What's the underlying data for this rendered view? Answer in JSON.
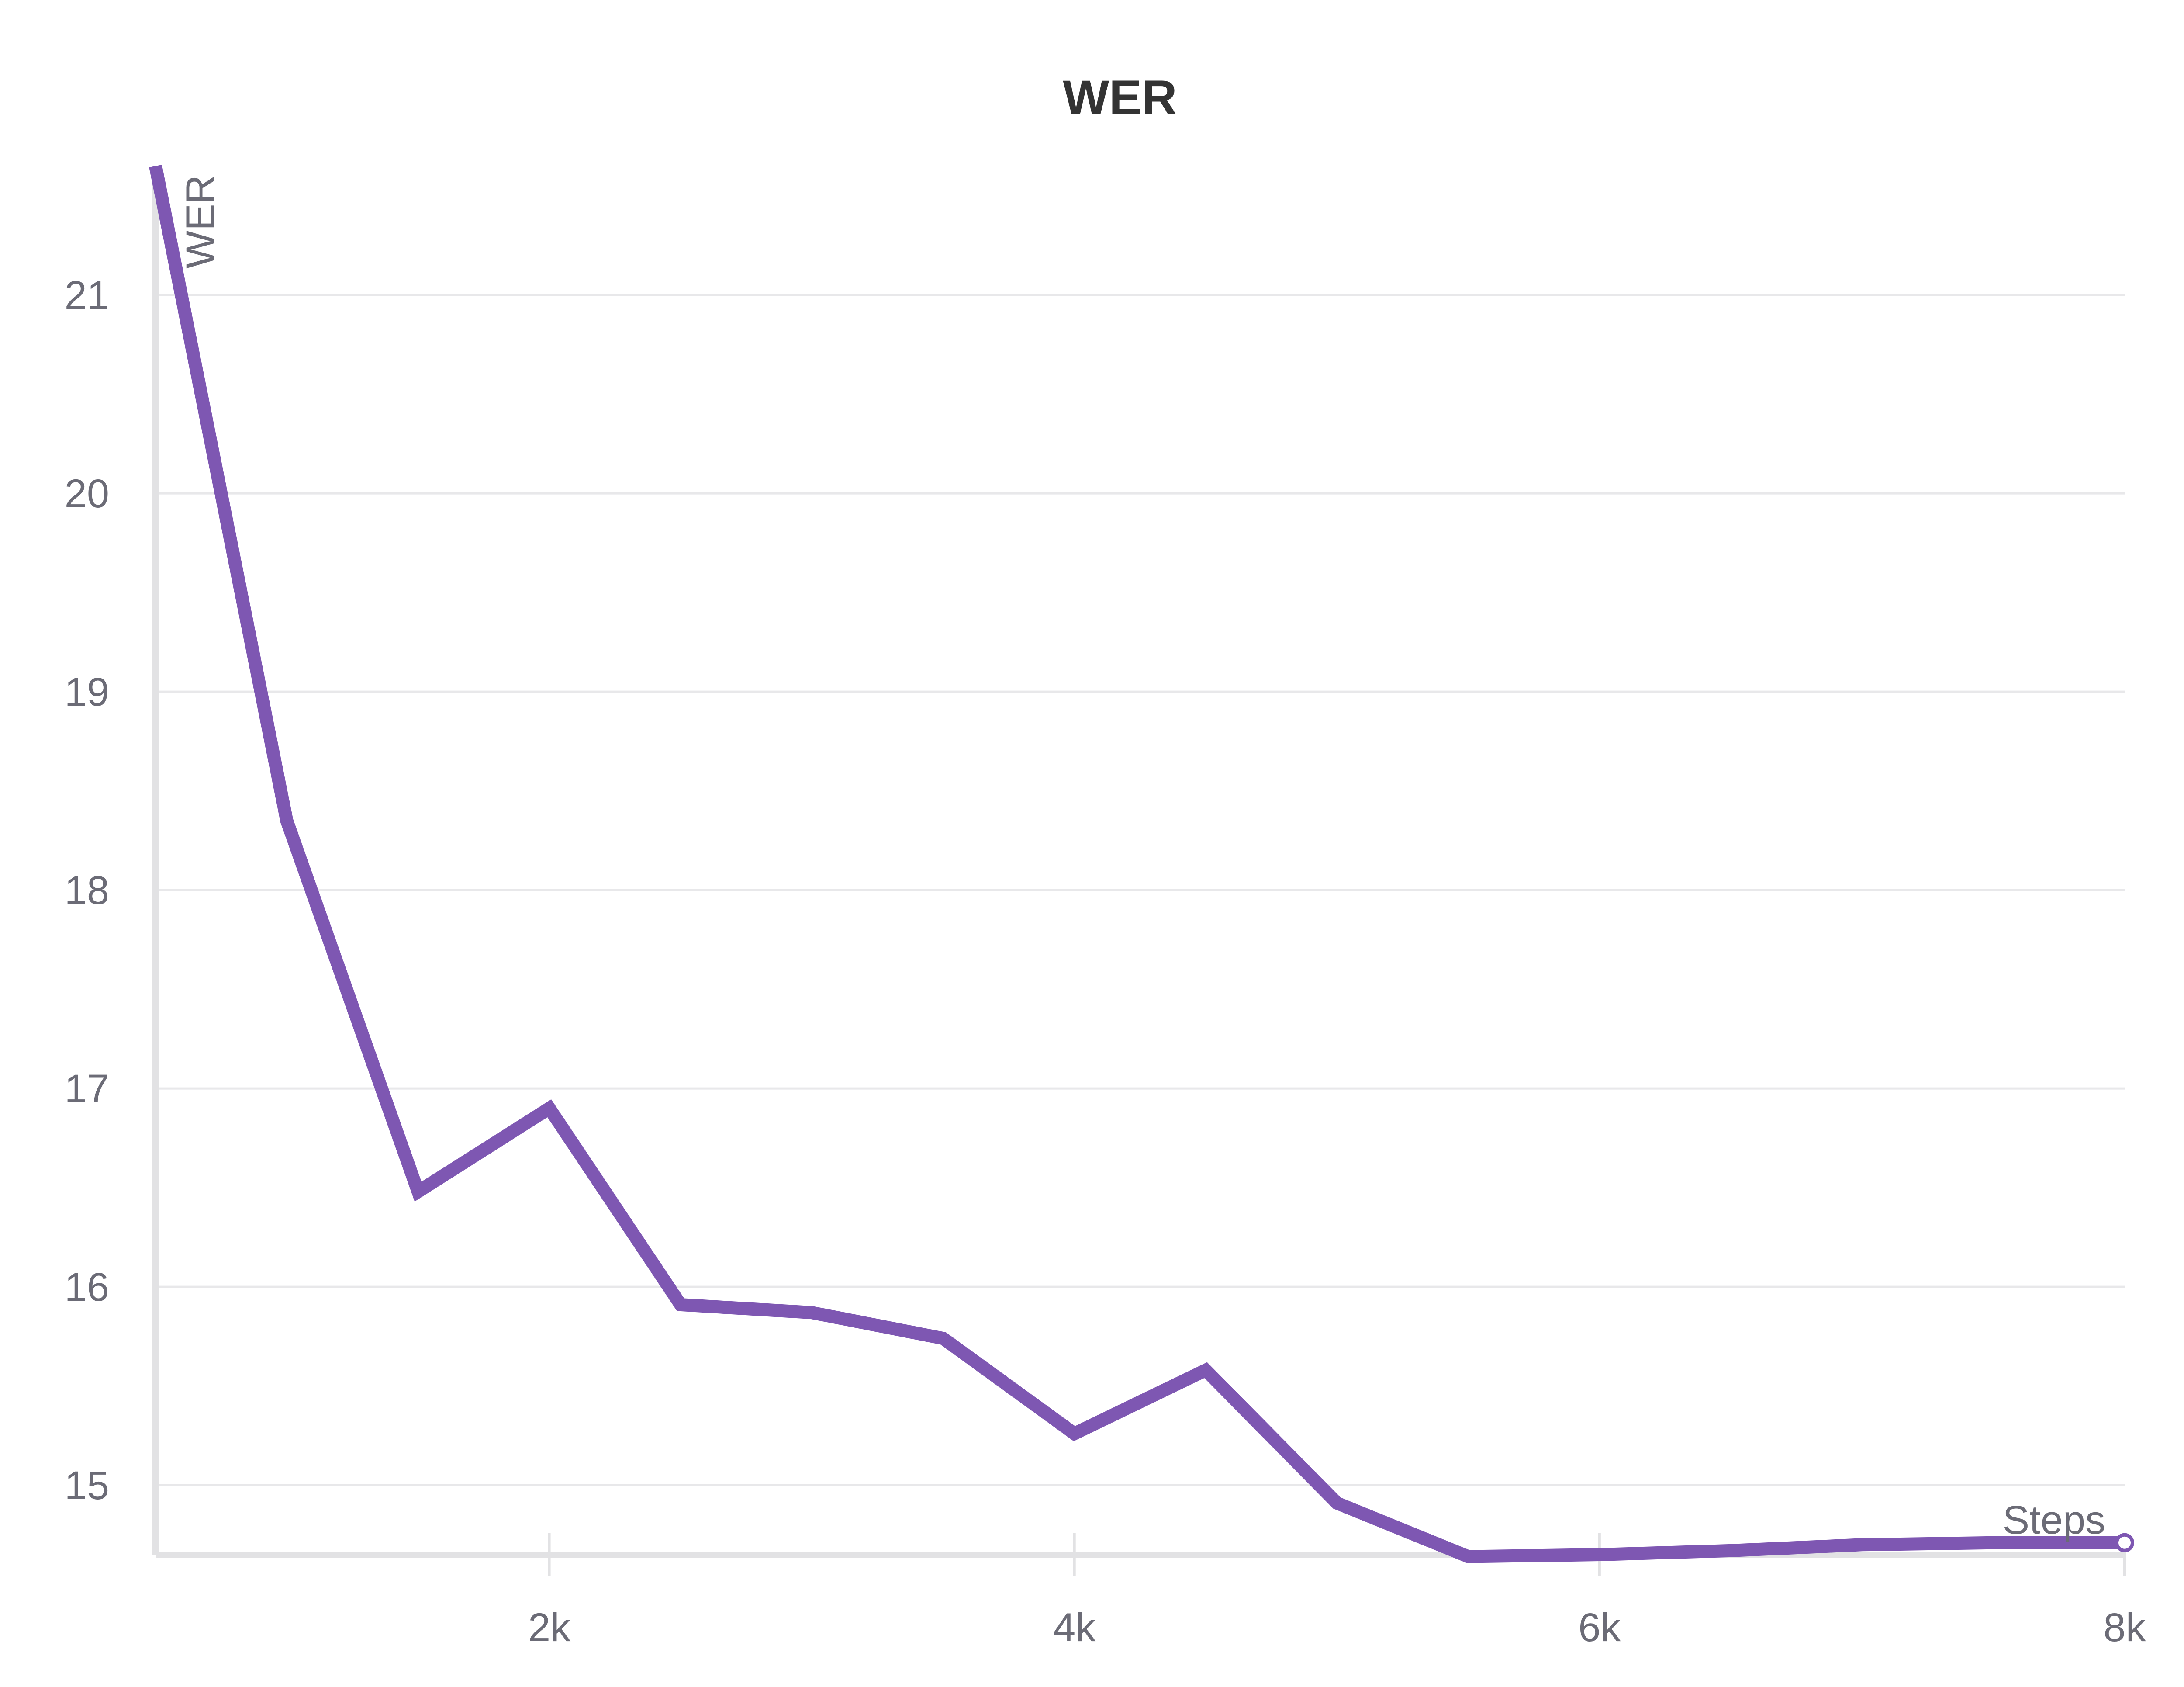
{
  "colors": {
    "series": "#7e57b2",
    "grid": "#e8e8ea",
    "axis": "#e2e2e4",
    "tick_text": "#6b6b76",
    "title_text": "#333333"
  },
  "chart_data": {
    "type": "line",
    "title": "WER",
    "xlabel": "Steps",
    "ylabel": "WER",
    "xlim": [
      500,
      8000
    ],
    "ylim": [
      14.65,
      21.65
    ],
    "x_ticks": [
      {
        "value": 2000,
        "label": "2k"
      },
      {
        "value": 4000,
        "label": "4k"
      },
      {
        "value": 6000,
        "label": "6k"
      },
      {
        "value": 8000,
        "label": "8k"
      }
    ],
    "y_ticks": [
      {
        "value": 15,
        "label": "15"
      },
      {
        "value": 16,
        "label": "16"
      },
      {
        "value": 17,
        "label": "17"
      },
      {
        "value": 18,
        "label": "18"
      },
      {
        "value": 19,
        "label": "19"
      },
      {
        "value": 20,
        "label": "20"
      },
      {
        "value": 21,
        "label": "21"
      }
    ],
    "grid": true,
    "legend": "none",
    "series": [
      {
        "x": [
          500,
          1000,
          1500,
          2000,
          2500,
          3000,
          3500,
          4000,
          4500,
          5000,
          5500,
          6000,
          6500,
          7000,
          7500,
          8000
        ],
        "y": [
          21.65,
          18.35,
          16.48,
          16.9,
          15.91,
          15.87,
          15.74,
          15.26,
          15.58,
          14.91,
          14.64,
          14.65,
          14.67,
          14.7,
          14.71,
          14.71
        ]
      }
    ]
  }
}
